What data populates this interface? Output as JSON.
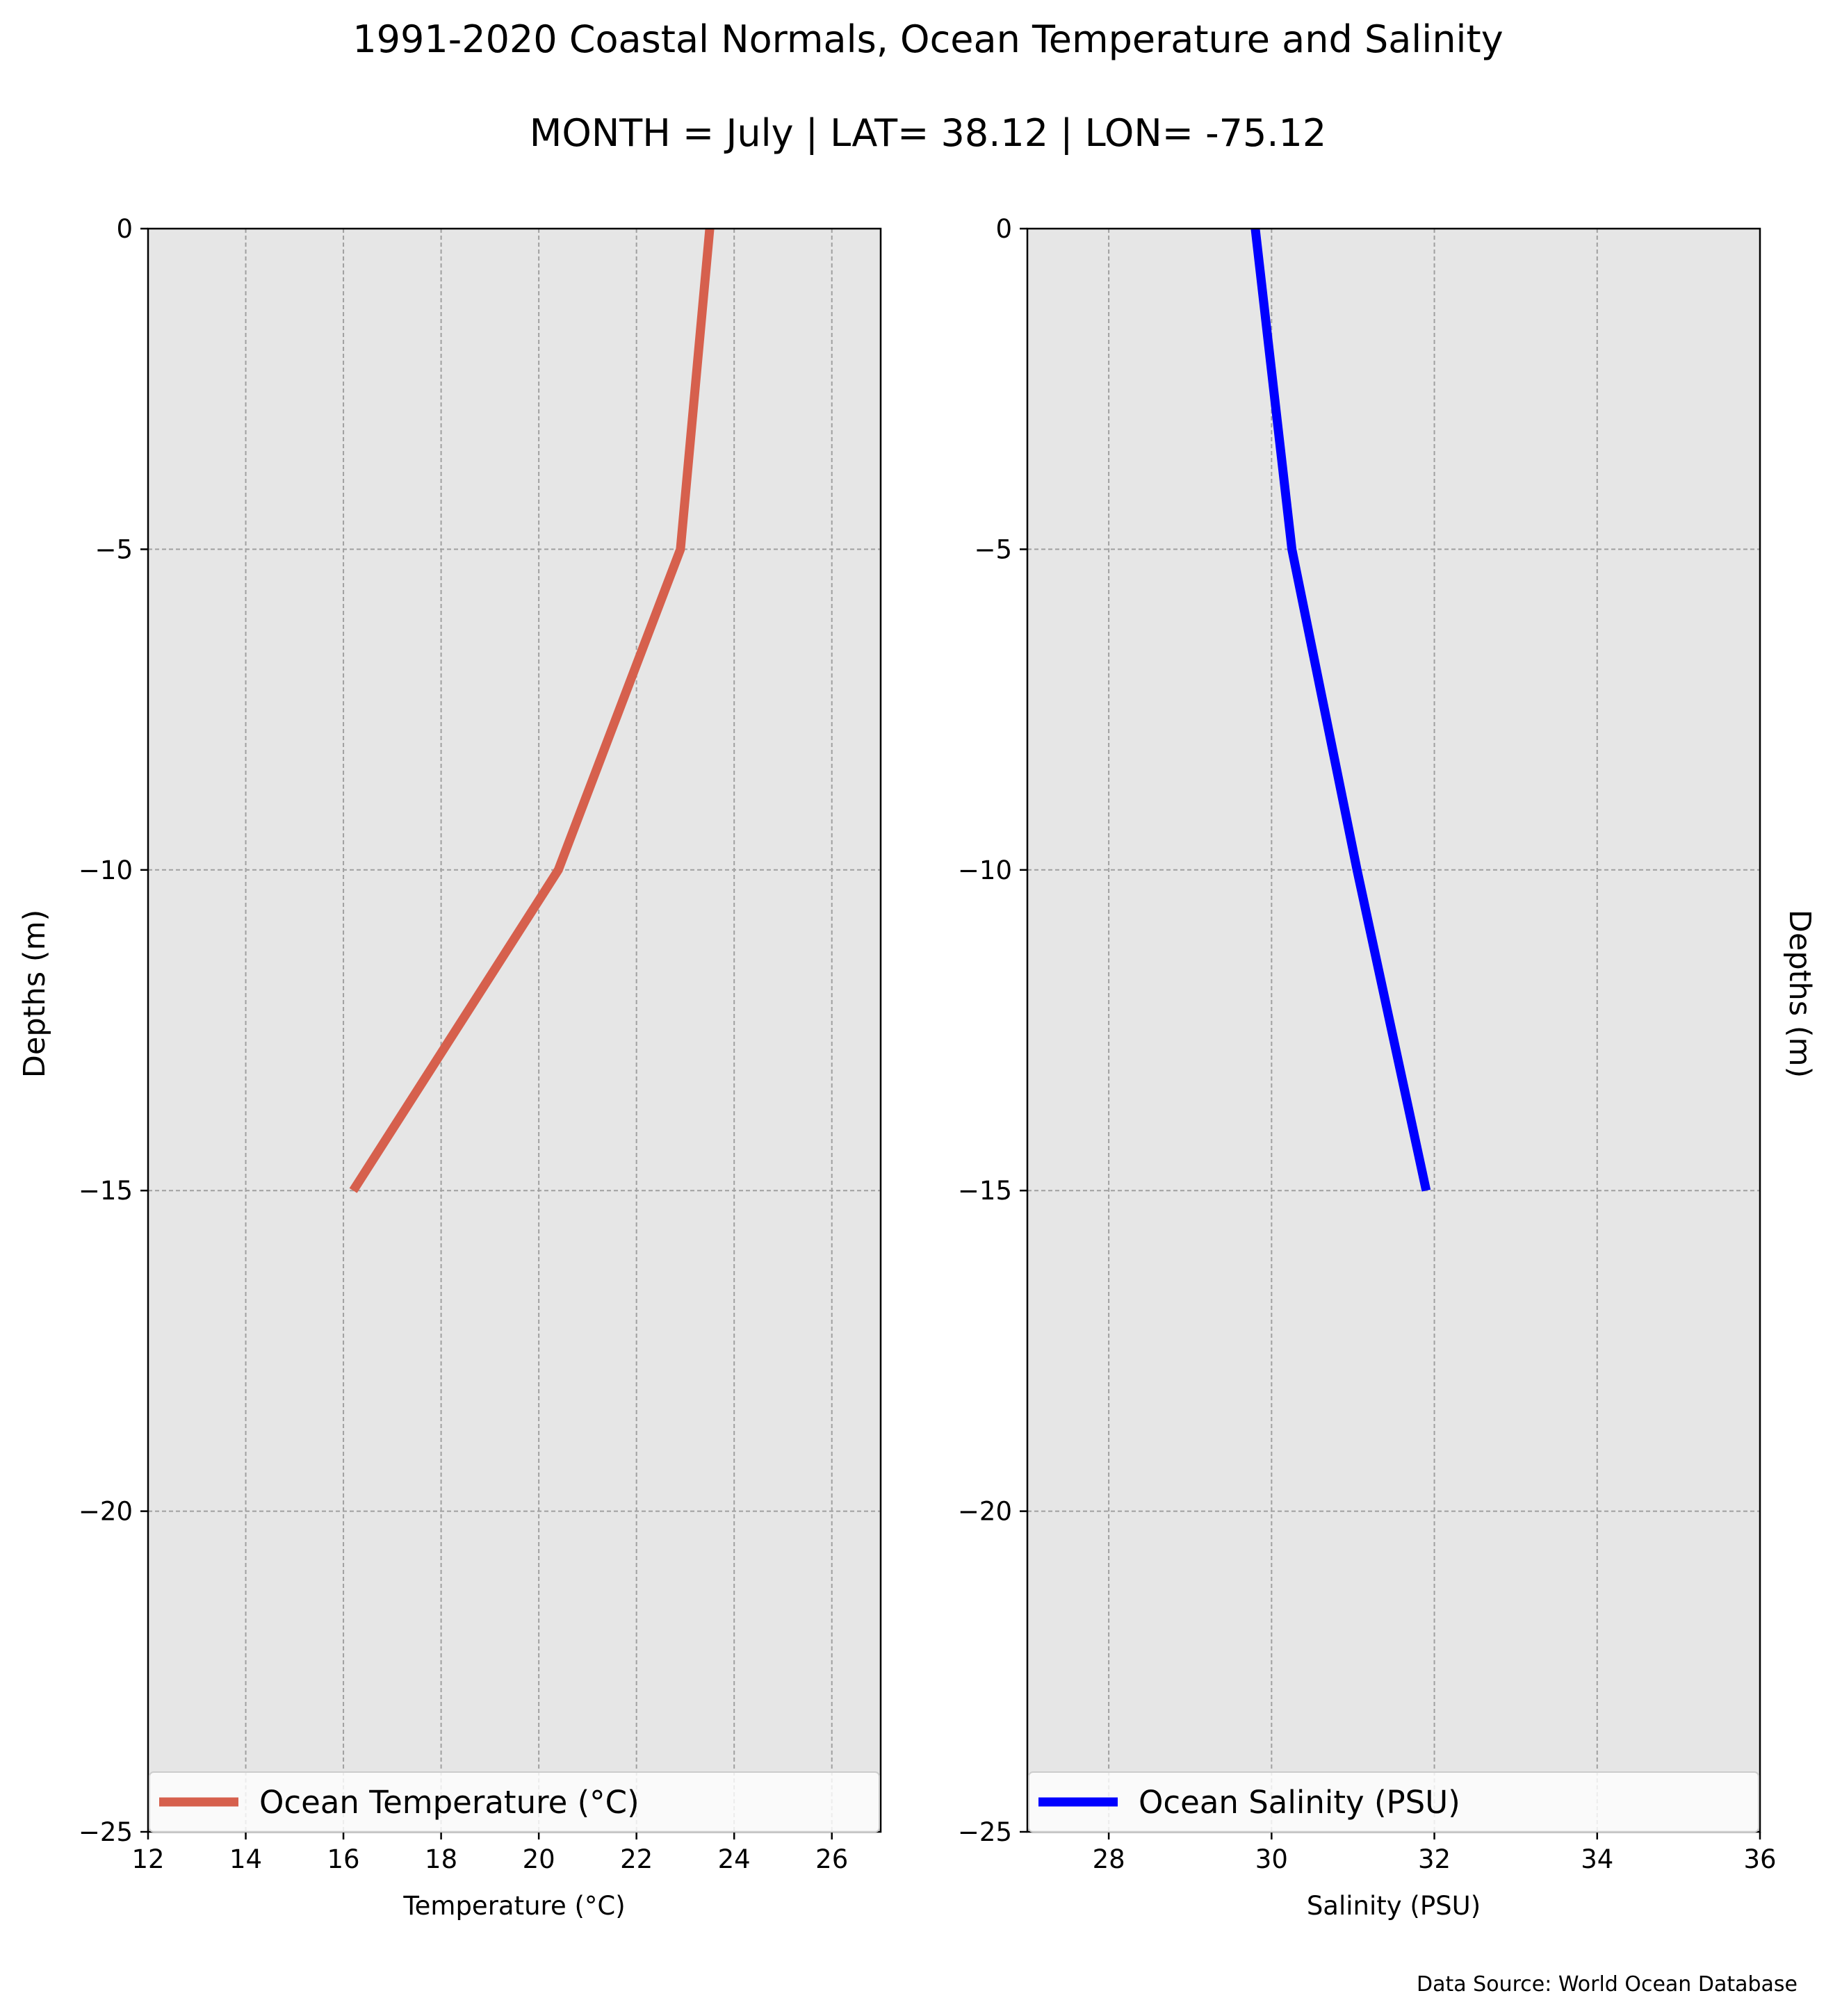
{
  "title": "1991-2020 Coastal Normals, Ocean Temperature and Salinity",
  "subtitle": "MONTH = July | LAT= 38.12 | LON= -75.12",
  "source": "Data Source: World Ocean Database",
  "colors": {
    "panel_bg": "#e6e6e6",
    "grid": "#a0a0a0",
    "temperature": "#d6604d",
    "salinity": "#0000ff"
  },
  "chart_data": [
    {
      "type": "line",
      "xlabel": "Temperature ($^\\circ$C)",
      "xlabel_display": "Temperature (°C)",
      "ylabel": "Depths (m)",
      "xlim": [
        12,
        27
      ],
      "ylim": [
        -25,
        0
      ],
      "xticks": [
        "12",
        "14",
        "16",
        "18",
        "20",
        "22",
        "24",
        "26"
      ],
      "yticks": [
        "0",
        "−5",
        "−10",
        "−15",
        "−20",
        "−25"
      ],
      "grid": true,
      "legend": "bottom",
      "series": [
        {
          "name": "Ocean Temperature (°C)",
          "color": "#d6604d",
          "x": [
            23.5,
            22.9,
            20.4,
            16.2
          ],
          "y": [
            0,
            -5,
            -10,
            -15
          ]
        }
      ]
    },
    {
      "type": "line",
      "xlabel": "Salinity (PSU)",
      "ylabel": "Depths (m)",
      "xlim": [
        27,
        36
      ],
      "ylim": [
        -25,
        0
      ],
      "xticks": [
        "28",
        "30",
        "32",
        "34",
        "36"
      ],
      "yticks": [
        "0",
        "−5",
        "−10",
        "−15",
        "−20",
        "−25"
      ],
      "grid": true,
      "legend": "bottom",
      "series": [
        {
          "name": "Ocean Salinity (PSU)",
          "color": "#0000ff",
          "x": [
            29.8,
            30.25,
            31.05,
            31.9
          ],
          "y": [
            0,
            -5,
            -10,
            -15
          ]
        }
      ]
    }
  ]
}
